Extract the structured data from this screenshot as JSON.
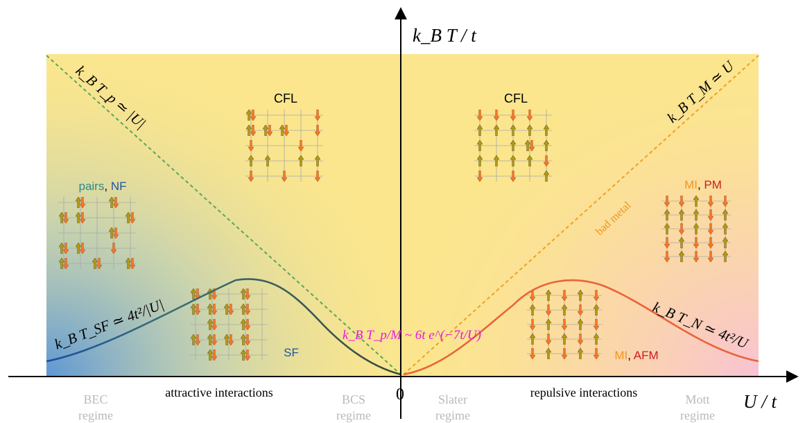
{
  "axes": {
    "y_label": "k_B T / t",
    "x_label": "U / t",
    "origin_label": "0"
  },
  "regimes": {
    "bec": [
      "BEC",
      "regime"
    ],
    "bcs": [
      "BCS",
      "regime"
    ],
    "slater": [
      "Slater",
      "regime"
    ],
    "mott": [
      "Mott",
      "regime"
    ]
  },
  "interactions": {
    "attractive": "attractive interactions",
    "repulsive": "repulsive interactions"
  },
  "phases": {
    "cfl_left": "CFL",
    "cfl_right": "CFL",
    "pairs": "pairs",
    "nf": "NF",
    "sf": "SF",
    "mi_top": "MI",
    "pm": "PM",
    "mi_bottom": "MI",
    "afm": "AFM",
    "separator": ", "
  },
  "annotations": {
    "bad_metal": "bad metal",
    "tp_left": "k_B T_p ≃ |U|",
    "tm_right": "k_B T_M ≃ U",
    "tsf": "k_B T_SF ≃ 4t²/|U|",
    "tn": "k_B T_N ≃ 4t²/U",
    "center": "k_B T_p/M ~ 6t e^(−7t/U)"
  },
  "colors": {
    "bg_yellow": "#fbe68e",
    "bg_blue": "#6aa0d8",
    "bg_pink": "#f8c8d4",
    "sf_curve": "#3a6f78",
    "sf_curve_dark": "#1c4c8c",
    "n_curve": "#e8643a",
    "tp_dashed": "#5aa65a",
    "tm_dashed": "#f0a020",
    "teal_text": "#2a8a8a",
    "blue_text": "#1e56a0",
    "orange_text": "#f0961e",
    "red_text": "#c81e1e",
    "magenta_text": "#e818d8",
    "grey_text": "#b9b9b9",
    "up_arrow": "#9c8a10",
    "down_arrow": "#f07020"
  }
}
